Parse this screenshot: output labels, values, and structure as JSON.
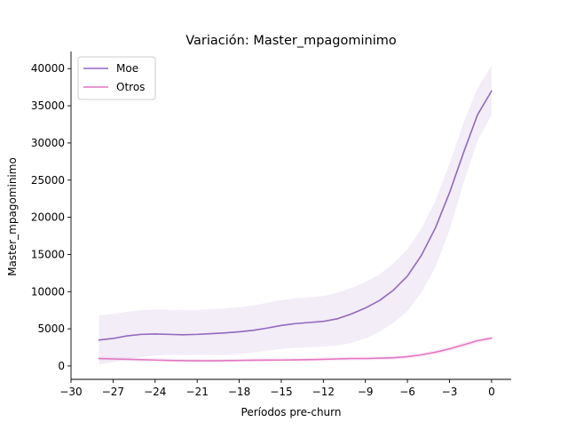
{
  "chart_data": {
    "type": "line",
    "title": "Variación: Master_mpagominimo",
    "xlabel": "Períodos pre-churn",
    "ylabel": "Master_mpagominimo",
    "xlim": [
      -30,
      1.4
    ],
    "ylim": [
      -1800,
      42300
    ],
    "xticks": [
      -30,
      -27,
      -24,
      -21,
      -18,
      -15,
      -12,
      -9,
      -6,
      -3,
      0
    ],
    "yticks": [
      0,
      5000,
      10000,
      15000,
      20000,
      25000,
      30000,
      35000,
      40000
    ],
    "grid": false,
    "legend_position": "top-left",
    "x": [
      -28,
      -27,
      -26,
      -25,
      -24,
      -23,
      -22,
      -21,
      -20,
      -19,
      -18,
      -17,
      -16,
      -15,
      -14,
      -13,
      -12,
      -11,
      -10,
      -9,
      -8,
      -7,
      -6,
      -5,
      -4,
      -3,
      -2,
      -1,
      0
    ],
    "series": [
      {
        "name": "Moe",
        "color": "#9467bd",
        "values": [
          3500,
          3700,
          4050,
          4250,
          4300,
          4250,
          4200,
          4250,
          4350,
          4450,
          4600,
          4800,
          5100,
          5450,
          5700,
          5850,
          6000,
          6350,
          7000,
          7800,
          8800,
          10200,
          12100,
          14900,
          18600,
          23300,
          28700,
          33800,
          37000
        ],
        "ci_lower": [
          200,
          500,
          900,
          1200,
          1400,
          1500,
          1500,
          1500,
          1500,
          1500,
          1600,
          1800,
          2050,
          2300,
          2450,
          2500,
          2600,
          2750,
          3100,
          3700,
          4600,
          5800,
          7400,
          9900,
          13300,
          18300,
          24600,
          30300,
          33800
        ],
        "ci_upper": [
          6800,
          7000,
          7300,
          7500,
          7600,
          7550,
          7500,
          7550,
          7650,
          7750,
          7900,
          8150,
          8500,
          8850,
          9100,
          9250,
          9400,
          9850,
          10500,
          11300,
          12300,
          13800,
          15700,
          18500,
          22200,
          27200,
          32700,
          37400,
          40400
        ]
      },
      {
        "name": "Otros",
        "color": "#e377c2",
        "values": [
          1000,
          950,
          900,
          850,
          800,
          750,
          720,
          700,
          700,
          720,
          750,
          780,
          790,
          800,
          820,
          850,
          900,
          950,
          1000,
          1000,
          1050,
          1100,
          1250,
          1500,
          1850,
          2300,
          2850,
          3400,
          3750
        ],
        "ci_lower": [
          750,
          700,
          650,
          600,
          560,
          520,
          500,
          480,
          480,
          500,
          520,
          550,
          560,
          570,
          590,
          620,
          660,
          700,
          740,
          760,
          800,
          850,
          980,
          1220,
          1550,
          1980,
          2500,
          3050,
          3500
        ],
        "ci_upper": [
          1250,
          1200,
          1150,
          1100,
          1050,
          990,
          950,
          920,
          920,
          940,
          980,
          1010,
          1020,
          1030,
          1050,
          1080,
          1140,
          1200,
          1260,
          1240,
          1300,
          1350,
          1520,
          1780,
          2150,
          2620,
          3200,
          3750,
          4000
        ]
      }
    ]
  }
}
